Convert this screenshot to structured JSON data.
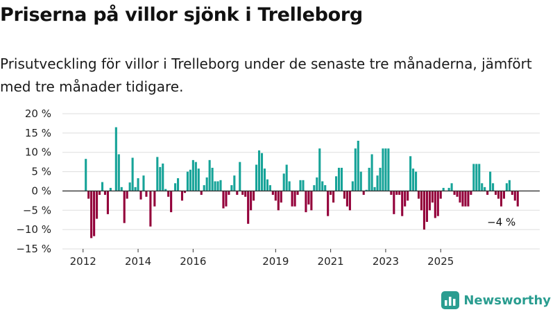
{
  "title": "Priserna på villor sjönk i Trelleborg",
  "subtitle": "Prisutveckling för villor i Trelleborg under de senaste tre månaderna, jämfört med tre månader tidigare.",
  "brand": {
    "name": "Newsworthy",
    "icon": "bar-chart-logo-icon",
    "color": "#2a9d90"
  },
  "colors": {
    "positive": "#16a398",
    "negative": "#93003a",
    "grid": "#dddddd",
    "axis": "#333333"
  },
  "chart_data": {
    "type": "bar",
    "xlabel": "",
    "ylabel": "",
    "ylim": [
      -15,
      20
    ],
    "y_ticks": [
      {
        "value": 20,
        "label": "20 %"
      },
      {
        "value": 15,
        "label": "15 %"
      },
      {
        "value": 10,
        "label": "10 %"
      },
      {
        "value": 5,
        "label": "5 %"
      },
      {
        "value": 0,
        "label": "0 %"
      },
      {
        "value": -5,
        "label": "−5 %"
      },
      {
        "value": -10,
        "label": "−10 %"
      },
      {
        "value": -15,
        "label": "−15 %"
      }
    ],
    "x_ticks": [
      {
        "value": 2012,
        "label": "2012"
      },
      {
        "value": 2014,
        "label": "2014"
      },
      {
        "value": 2016,
        "label": "2016"
      },
      {
        "value": 2019,
        "label": "2019"
      },
      {
        "value": 2021,
        "label": "2021"
      },
      {
        "value": 2023,
        "label": "2023"
      },
      {
        "value": 2025,
        "label": "2025"
      }
    ],
    "grid": true,
    "annotation": {
      "label": "−4 %",
      "target": "last"
    },
    "series": [
      {
        "x": 2012.1,
        "y": 8.3
      },
      {
        "x": 2012.2,
        "y": -2
      },
      {
        "x": 2012.3,
        "y": -12.2
      },
      {
        "x": 2012.4,
        "y": -11.7
      },
      {
        "x": 2012.5,
        "y": -7.2
      },
      {
        "x": 2012.6,
        "y": -1
      },
      {
        "x": 2012.7,
        "y": 2.3
      },
      {
        "x": 2012.8,
        "y": -1
      },
      {
        "x": 2012.9,
        "y": -6
      },
      {
        "x": 2013.0,
        "y": 0.8
      },
      {
        "x": 2013.2,
        "y": 16.5
      },
      {
        "x": 2013.3,
        "y": 9.5
      },
      {
        "x": 2013.4,
        "y": 1
      },
      {
        "x": 2013.5,
        "y": -8.3
      },
      {
        "x": 2013.6,
        "y": -2
      },
      {
        "x": 2013.7,
        "y": 2.2
      },
      {
        "x": 2013.8,
        "y": 8.6
      },
      {
        "x": 2013.9,
        "y": 1
      },
      {
        "x": 2014.0,
        "y": 3.3
      },
      {
        "x": 2014.1,
        "y": -2.2
      },
      {
        "x": 2014.2,
        "y": 4
      },
      {
        "x": 2014.3,
        "y": -1.5
      },
      {
        "x": 2014.45,
        "y": -9.2
      },
      {
        "x": 2014.6,
        "y": -4
      },
      {
        "x": 2014.7,
        "y": 8.8
      },
      {
        "x": 2014.8,
        "y": 6.2
      },
      {
        "x": 2014.9,
        "y": 7.1
      },
      {
        "x": 2015.0,
        "y": 0.5
      },
      {
        "x": 2015.1,
        "y": -1.5
      },
      {
        "x": 2015.2,
        "y": -5.5
      },
      {
        "x": 2015.35,
        "y": 2
      },
      {
        "x": 2015.45,
        "y": 3.3
      },
      {
        "x": 2015.6,
        "y": -2.5
      },
      {
        "x": 2015.7,
        "y": -0.5
      },
      {
        "x": 2015.8,
        "y": 5
      },
      {
        "x": 2015.9,
        "y": 5.5
      },
      {
        "x": 2016.0,
        "y": 8
      },
      {
        "x": 2016.1,
        "y": 7.5
      },
      {
        "x": 2016.2,
        "y": 5.8
      },
      {
        "x": 2016.3,
        "y": -1
      },
      {
        "x": 2016.4,
        "y": 1.5
      },
      {
        "x": 2016.5,
        "y": 3.5
      },
      {
        "x": 2016.6,
        "y": 8
      },
      {
        "x": 2016.7,
        "y": 6
      },
      {
        "x": 2016.8,
        "y": 2.5
      },
      {
        "x": 2016.9,
        "y": 2.5
      },
      {
        "x": 2017.0,
        "y": 2.8
      },
      {
        "x": 2017.1,
        "y": -4.5
      },
      {
        "x": 2017.2,
        "y": -4
      },
      {
        "x": 2017.3,
        "y": -1
      },
      {
        "x": 2017.4,
        "y": 1.5
      },
      {
        "x": 2017.5,
        "y": 4
      },
      {
        "x": 2017.6,
        "y": -1
      },
      {
        "x": 2017.7,
        "y": 7.5
      },
      {
        "x": 2017.8,
        "y": -1
      },
      {
        "x": 2017.9,
        "y": -1.5
      },
      {
        "x": 2018.0,
        "y": -8.5
      },
      {
        "x": 2018.1,
        "y": -5
      },
      {
        "x": 2018.2,
        "y": -2.5
      },
      {
        "x": 2018.3,
        "y": 6.8
      },
      {
        "x": 2018.4,
        "y": 10.5
      },
      {
        "x": 2018.5,
        "y": 9.8
      },
      {
        "x": 2018.6,
        "y": 5.8
      },
      {
        "x": 2018.7,
        "y": 3
      },
      {
        "x": 2018.8,
        "y": 1.5
      },
      {
        "x": 2018.9,
        "y": -1
      },
      {
        "x": 2019.0,
        "y": -2.5
      },
      {
        "x": 2019.1,
        "y": -5
      },
      {
        "x": 2019.2,
        "y": -3
      },
      {
        "x": 2019.3,
        "y": 4.5
      },
      {
        "x": 2019.4,
        "y": 6.8
      },
      {
        "x": 2019.5,
        "y": 2.5
      },
      {
        "x": 2019.6,
        "y": -4
      },
      {
        "x": 2019.7,
        "y": -4
      },
      {
        "x": 2019.8,
        "y": -1
      },
      {
        "x": 2019.9,
        "y": 2.8
      },
      {
        "x": 2020.0,
        "y": 2.8
      },
      {
        "x": 2020.1,
        "y": -5.5
      },
      {
        "x": 2020.2,
        "y": -3.5
      },
      {
        "x": 2020.3,
        "y": -5
      },
      {
        "x": 2020.4,
        "y": 1.5
      },
      {
        "x": 2020.5,
        "y": 3.5
      },
      {
        "x": 2020.6,
        "y": 11
      },
      {
        "x": 2020.7,
        "y": 2.5
      },
      {
        "x": 2020.8,
        "y": 1.5
      },
      {
        "x": 2020.9,
        "y": -6.5
      },
      {
        "x": 2021.0,
        "y": -1
      },
      {
        "x": 2021.1,
        "y": -3
      },
      {
        "x": 2021.2,
        "y": 3.8
      },
      {
        "x": 2021.3,
        "y": 6
      },
      {
        "x": 2021.4,
        "y": 6
      },
      {
        "x": 2021.5,
        "y": -2
      },
      {
        "x": 2021.6,
        "y": -4
      },
      {
        "x": 2021.7,
        "y": -5
      },
      {
        "x": 2021.8,
        "y": 2.5
      },
      {
        "x": 2021.9,
        "y": 11
      },
      {
        "x": 2022.0,
        "y": 13
      },
      {
        "x": 2022.1,
        "y": 5
      },
      {
        "x": 2022.2,
        "y": -1
      },
      {
        "x": 2022.3,
        "y": 0.3
      },
      {
        "x": 2022.4,
        "y": 6
      },
      {
        "x": 2022.5,
        "y": 9.5
      },
      {
        "x": 2022.6,
        "y": 1
      },
      {
        "x": 2022.7,
        "y": 4
      },
      {
        "x": 2022.8,
        "y": 6
      },
      {
        "x": 2022.9,
        "y": 11
      },
      {
        "x": 2023.0,
        "y": 11
      },
      {
        "x": 2023.1,
        "y": 11
      },
      {
        "x": 2023.2,
        "y": -1
      },
      {
        "x": 2023.3,
        "y": -6
      },
      {
        "x": 2023.4,
        "y": -1
      },
      {
        "x": 2023.5,
        "y": -1
      },
      {
        "x": 2023.6,
        "y": -6.5
      },
      {
        "x": 2023.7,
        "y": -4
      },
      {
        "x": 2023.8,
        "y": -2.5
      },
      {
        "x": 2023.9,
        "y": 9
      },
      {
        "x": 2024.0,
        "y": 5.8
      },
      {
        "x": 2024.1,
        "y": 5
      },
      {
        "x": 2024.2,
        "y": -2
      },
      {
        "x": 2024.3,
        "y": -5
      },
      {
        "x": 2024.4,
        "y": -10
      },
      {
        "x": 2024.5,
        "y": -8
      },
      {
        "x": 2024.6,
        "y": -5
      },
      {
        "x": 2024.7,
        "y": -3
      },
      {
        "x": 2024.8,
        "y": -7
      },
      {
        "x": 2024.9,
        "y": -6.5
      },
      {
        "x": 2025.0,
        "y": -2
      },
      {
        "x": 2025.1,
        "y": 0.8
      },
      {
        "x": 2025.3,
        "y": 0.8
      },
      {
        "x": 2025.4,
        "y": 2
      },
      {
        "x": 2025.5,
        "y": -1
      },
      {
        "x": 2025.6,
        "y": -1.5
      },
      {
        "x": 2025.7,
        "y": -3
      },
      {
        "x": 2025.8,
        "y": -4
      },
      {
        "x": 2025.9,
        "y": -4
      },
      {
        "x": 2026.0,
        "y": -4
      },
      {
        "x": 2026.1,
        "y": -1
      },
      {
        "x": 2026.2,
        "y": 7
      },
      {
        "x": 2026.3,
        "y": 7
      },
      {
        "x": 2026.4,
        "y": 7
      },
      {
        "x": 2026.5,
        "y": 2
      },
      {
        "x": 2026.6,
        "y": 1
      },
      {
        "x": 2026.7,
        "y": -1
      },
      {
        "x": 2026.8,
        "y": 5
      },
      {
        "x": 2026.9,
        "y": 2
      },
      {
        "x": 2027.0,
        "y": -1
      },
      {
        "x": 2027.1,
        "y": -2
      },
      {
        "x": 2027.2,
        "y": -4
      },
      {
        "x": 2027.3,
        "y": -2
      },
      {
        "x": 2027.4,
        "y": 2
      },
      {
        "x": 2027.5,
        "y": 2.8
      },
      {
        "x": 2027.6,
        "y": -1
      },
      {
        "x": 2027.7,
        "y": -2.5
      },
      {
        "x": 2027.8,
        "y": -4
      }
    ]
  }
}
